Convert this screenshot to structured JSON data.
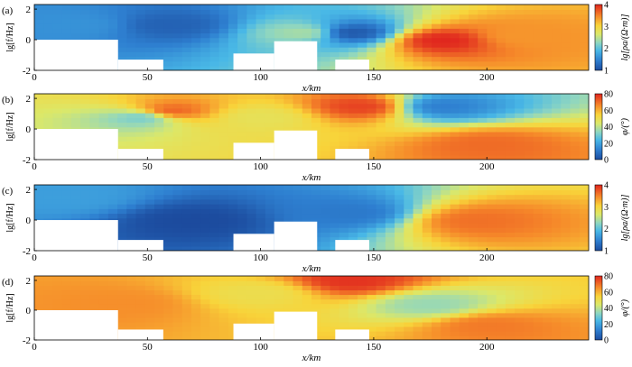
{
  "chart_data": [
    {
      "type": "heatmap",
      "panel_label": "(a)",
      "quantity": "apparent resistivity",
      "xlabel": "x/km",
      "ylabel": "lg[f/Hz]",
      "colorbar_label": "lg[ρa/(Ω·m)]",
      "xlim": [
        0,
        245
      ],
      "ylim": [
        -2,
        2.3
      ],
      "x_ticks": [
        "0",
        "50",
        "100",
        "150",
        "200"
      ],
      "y_ticks": [
        "-2",
        "0",
        "2"
      ],
      "colorbar_range": [
        1,
        4
      ],
      "colorbar_ticks": [
        "1",
        "2",
        "3",
        "4"
      ],
      "colormap": "jet",
      "features": [
        {
          "x": 180,
          "y": 0.0,
          "value": 4.0
        },
        {
          "x": 215,
          "y": 0.3,
          "value": 3.4
        },
        {
          "x": 60,
          "y": 1.0,
          "value": 1.2
        },
        {
          "x": 140,
          "y": 0.5,
          "value": 1.1
        },
        {
          "x": 120,
          "y": 0.5,
          "value": 2.4
        },
        {
          "x": 20,
          "y": 1.0,
          "value": 1.6
        }
      ]
    },
    {
      "type": "heatmap",
      "panel_label": "(b)",
      "quantity": "impedance phase",
      "xlabel": "x/km",
      "ylabel": "lg[f/Hz]",
      "colorbar_label": "φ/(°)",
      "xlim": [
        0,
        245
      ],
      "ylim": [
        -2,
        2.3
      ],
      "x_ticks": [
        "0",
        "50",
        "100",
        "150",
        "200"
      ],
      "y_ticks": [
        "-2",
        "0",
        "2"
      ],
      "colorbar_range": [
        0,
        80
      ],
      "colorbar_ticks": [
        "0",
        "20",
        "40",
        "60",
        "80"
      ],
      "colormap": "jet",
      "features": [
        {
          "x": 180,
          "y": 1.5,
          "value": 12
        },
        {
          "x": 200,
          "y": -1.0,
          "value": 70
        },
        {
          "x": 60,
          "y": 1.2,
          "value": 72
        },
        {
          "x": 48,
          "y": 0.8,
          "value": 30
        },
        {
          "x": 145,
          "y": 1.5,
          "value": 76
        },
        {
          "x": 100,
          "y": 0.8,
          "value": 48
        }
      ]
    },
    {
      "type": "heatmap",
      "panel_label": "(c)",
      "quantity": "apparent resistivity",
      "xlabel": "x/km",
      "ylabel": "lg[f/Hz]",
      "colorbar_label": "lg[ρa/(Ω·m)]",
      "xlim": [
        0,
        245
      ],
      "ylim": [
        -2,
        2.3
      ],
      "x_ticks": [
        "0",
        "50",
        "100",
        "150",
        "200"
      ],
      "y_ticks": [
        "-2",
        "0",
        "2"
      ],
      "colorbar_range": [
        1,
        4
      ],
      "colorbar_ticks": [
        "1",
        "2",
        "3",
        "4"
      ],
      "colormap": "jet",
      "features": [
        {
          "x": 195,
          "y": 0.0,
          "value": 3.6
        },
        {
          "x": 70,
          "y": 0.0,
          "value": 1.0
        },
        {
          "x": 140,
          "y": 0.5,
          "value": 1.4
        },
        {
          "x": 15,
          "y": 1.5,
          "value": 1.7
        }
      ]
    },
    {
      "type": "heatmap",
      "panel_label": "(d)",
      "quantity": "impedance phase",
      "xlabel": "x/km",
      "ylabel": "lg[f/Hz]",
      "colorbar_label": "φ/(°)",
      "xlim": [
        0,
        245
      ],
      "ylim": [
        -2,
        2.3
      ],
      "x_ticks": [
        "0",
        "50",
        "100",
        "150",
        "200"
      ],
      "y_ticks": [
        "-2",
        "0",
        "2"
      ],
      "colorbar_range": [
        0,
        80
      ],
      "colorbar_ticks": [
        "0",
        "20",
        "40",
        "60",
        "80"
      ],
      "colormap": "jet",
      "features": [
        {
          "x": 140,
          "y": 2.0,
          "value": 78
        },
        {
          "x": 200,
          "y": -1.0,
          "value": 68
        },
        {
          "x": 40,
          "y": 0.5,
          "value": 65
        },
        {
          "x": 100,
          "y": 1.2,
          "value": 50
        },
        {
          "x": 175,
          "y": 0.4,
          "value": 35
        }
      ]
    }
  ],
  "data_gaps_km": {
    "x_start": [
      0,
      37,
      88,
      106,
      133
    ],
    "x_end": [
      37,
      57,
      106,
      125,
      148
    ],
    "y_top": [
      0,
      -1.3,
      -0.9,
      -0.1,
      -1.3
    ]
  },
  "colors": {
    "missing_data": "#ffffff",
    "frame": "#000000"
  }
}
